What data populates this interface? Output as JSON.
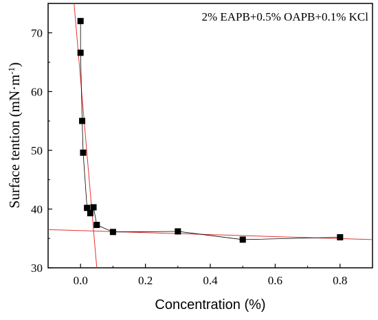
{
  "chart_data": {
    "type": "scatter",
    "xlabel": "Concentration (%)",
    "ylabel": "Surface tention (mN·m",
    "ylabel_superscript": "-1",
    "ylabel_close": ")",
    "xlim": [
      -0.1,
      0.9
    ],
    "ylim": [
      30,
      75
    ],
    "xticks": [
      0.0,
      0.2,
      0.4,
      0.6,
      0.8
    ],
    "xtick_labels": [
      "0.0",
      "0.2",
      "0.4",
      "0.6",
      "0.8"
    ],
    "yticks": [
      30,
      40,
      50,
      60,
      70
    ],
    "ytick_labels": [
      "30",
      "40",
      "50",
      "60",
      "70"
    ],
    "annotation": "2% EAPB+0.5% OAPB+0.1% KCl",
    "grid": false,
    "series": [
      {
        "marker": "square",
        "color": "#000000",
        "x": [
          0.0,
          0.0,
          0.005,
          0.008,
          0.02,
          0.03,
          0.04,
          0.05,
          0.1,
          0.3,
          0.5,
          0.8
        ],
        "y": [
          72.0,
          66.6,
          55.0,
          49.6,
          40.2,
          39.3,
          40.3,
          37.3,
          36.1,
          36.2,
          34.8,
          35.2
        ]
      }
    ],
    "fit_lines": [
      {
        "color": "#e8312f",
        "x": [
          -0.02,
          0.05
        ],
        "y": [
          75.0,
          30.0
        ]
      },
      {
        "color": "#e8312f",
        "x": [
          -0.1,
          0.9
        ],
        "y": [
          36.5,
          34.8
        ]
      }
    ]
  }
}
